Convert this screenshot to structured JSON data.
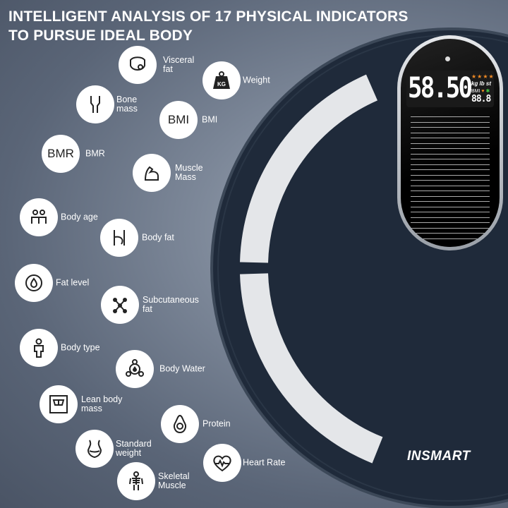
{
  "title": {
    "line1": "INTELLIGENT ANALYSIS OF 17 PHYSICAL INDICATORS",
    "line2": "TO PURSUE IDEAL BODY"
  },
  "indicators": [
    {
      "label": "Visceral\nfat",
      "icon": "visceral-fat-icon"
    },
    {
      "label": "Weight",
      "icon": "kg-weight-icon",
      "icon_text": "KG"
    },
    {
      "label": "Bone\nmass",
      "icon": "bone-joint-icon"
    },
    {
      "label": "BMI",
      "icon": "bmi-text-icon",
      "icon_text": "BMI"
    },
    {
      "label": "BMR",
      "icon": "bmr-text-icon",
      "icon_text": "BMR"
    },
    {
      "label": "Muscle\nMass",
      "icon": "arm-muscle-icon"
    },
    {
      "label": "Body age",
      "icon": "people-icon"
    },
    {
      "label": "Body fat",
      "icon": "belly-icon"
    },
    {
      "label": "Fat level",
      "icon": "fat-gauge-icon"
    },
    {
      "label": "Subcutaneous\nfat",
      "icon": "molecule-icon"
    },
    {
      "label": "Body type",
      "icon": "body-figure-icon"
    },
    {
      "label": "Body Water",
      "icon": "water-drop-icon"
    },
    {
      "label": "Lean body\nmass",
      "icon": "scale-icon"
    },
    {
      "label": "Protein",
      "icon": "avocado-icon"
    },
    {
      "label": "Standard\nweight",
      "icon": "waist-icon"
    },
    {
      "label": "Skeletal\nMuscle",
      "icon": "skeleton-icon"
    },
    {
      "label": "Heart Rate",
      "icon": "heart-rate-icon"
    }
  ],
  "display": {
    "reading": "58.50",
    "stars": "★★★★",
    "units": "kg lb st",
    "bmi_label": "BMI",
    "secondary": "88.8"
  },
  "brand": "INSMART",
  "colors": {
    "scale_body": "#1f2a3a",
    "accent": "#f08a24"
  }
}
